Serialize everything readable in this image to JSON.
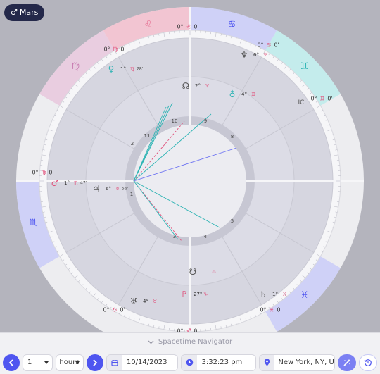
{
  "planet_chip": {
    "symbol": "♂",
    "label": "Mars"
  },
  "navigator": {
    "label": "Spacetime Navigator"
  },
  "toolbar": {
    "step_value": "1",
    "unit_value": "hours",
    "date_value": "10/14/2023",
    "time_value": "3:32:23 pm",
    "location_value": "New York, NY, U"
  },
  "colors": {
    "accent": "#4f56f0",
    "fire": "#e87a9a",
    "earth": "#c77ab0",
    "air": "#7a80f0",
    "water": "#6fd0d0"
  },
  "wheel": {
    "signs": [
      {
        "glyph": "♌",
        "color": "#e87a9a",
        "fill": "#f2c5d2"
      },
      {
        "glyph": "♋",
        "color": "#4f56f0",
        "fill": "#cfd1f7"
      },
      {
        "glyph": "♊",
        "color": "#2bb3b3",
        "fill": "#c4ecec"
      },
      {
        "glyph": "♓",
        "color": "#4f56f0",
        "fill": "#cfd1f7"
      },
      {
        "glyph": "♏",
        "color": "#4f56f0",
        "fill": "#cfd1f7"
      },
      {
        "glyph": "♍",
        "color": "#c77ab0",
        "fill": "#e9cde0"
      }
    ],
    "cusp_labels": [
      {
        "deg": "0°",
        "glyph": "♌",
        "min": "0'"
      },
      {
        "deg": "0°",
        "glyph": "♋",
        "min": "0'"
      },
      {
        "deg": "0°",
        "glyph": "♊",
        "min": "0'"
      },
      {
        "deg": "0°",
        "glyph": "♍",
        "min": "0'"
      },
      {
        "deg": "0°",
        "glyph": "♍",
        "min": "0'"
      },
      {
        "deg": "0°",
        "glyph": "♓",
        "min": "0'"
      },
      {
        "deg": "0°",
        "glyph": "♑",
        "min": "0'"
      },
      {
        "deg": "0°",
        "glyph": "♐",
        "min": "0'"
      }
    ],
    "houses": [
      "1",
      "2",
      "3",
      "4",
      "5",
      "8",
      "9",
      "10",
      "11"
    ],
    "ic_label": "IC",
    "planets": [
      {
        "glyph": "♂",
        "deg": "1°",
        "sign": "♏",
        "min": "47'"
      },
      {
        "glyph": "♃",
        "deg": "6°",
        "sign": "♉",
        "min": "56'"
      },
      {
        "glyph": "♀",
        "deg": "1°",
        "sign": "♍",
        "min": "28'"
      },
      {
        "glyph": "☊",
        "deg": "2°",
        "sign": "♈",
        "min": ""
      },
      {
        "glyph": "♆",
        "deg": "6°",
        "sign": "♋",
        "min": ""
      },
      {
        "glyph": "♄",
        "deg": "1°",
        "sign": "♓",
        "min": ""
      },
      {
        "glyph": "♇",
        "deg": "27°",
        "sign": "♑",
        "min": ""
      },
      {
        "glyph": "♅",
        "deg": "4°",
        "sign": "♉",
        "min": ""
      },
      {
        "glyph": "☋",
        "deg": "",
        "sign": "♎",
        "min": ""
      },
      {
        "glyph": "♁",
        "deg": "4°",
        "sign": "♊",
        "min": ""
      }
    ]
  }
}
